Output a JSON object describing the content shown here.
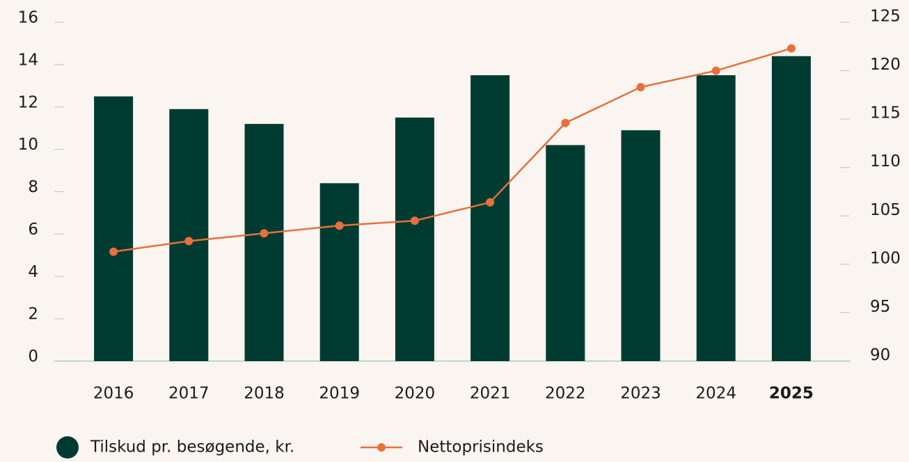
{
  "chart_data": {
    "type": "bar_line",
    "categories": [
      "2016",
      "2017",
      "2018",
      "2019",
      "2020",
      "2021",
      "2022",
      "2023",
      "2024",
      "2025"
    ],
    "bold_last_category": true,
    "series": [
      {
        "name": "Tilskud pr. besøgende, kr.",
        "type": "bar",
        "color": "#003b32",
        "values": [
          12.5,
          11.9,
          11.2,
          8.4,
          11.5,
          13.5,
          10.2,
          10.9,
          13.5,
          14.4
        ]
      },
      {
        "name": "Nettoprisindeks",
        "type": "line",
        "axis": "y2",
        "color": "#e8703a",
        "values": [
          101.3,
          102.4,
          103.2,
          104.0,
          104.5,
          106.4,
          114.6,
          118.3,
          120.0,
          122.3
        ]
      }
    ],
    "ylim": [
      0,
      16
    ],
    "yticks": [
      0,
      2,
      4,
      6,
      8,
      10,
      12,
      14,
      16
    ],
    "y2lim": [
      90,
      125
    ],
    "y2ticks": [
      90,
      95,
      100,
      105,
      110,
      115,
      120,
      125
    ],
    "legend": "bottom-left"
  }
}
